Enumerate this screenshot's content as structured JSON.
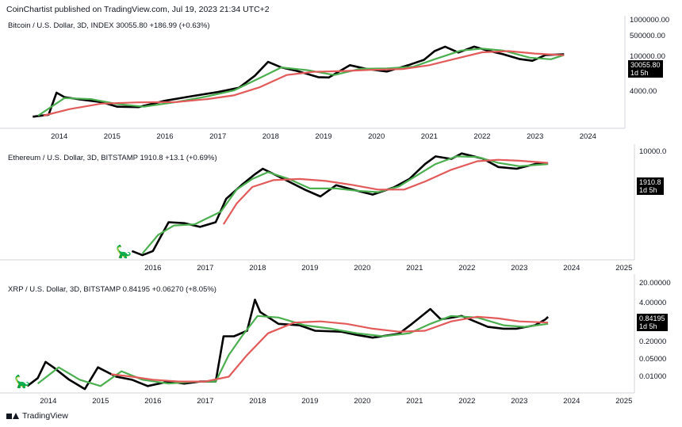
{
  "header": {
    "publisher": "CoinChartist published on TradingView.com, Jul 19, 2023 21:34 UTC+2"
  },
  "footer": {
    "brand": "TradingView"
  },
  "colors": {
    "price": "#000000",
    "fast_ma": "#4caf50",
    "slow_ma": "#e35a5a",
    "axis": "#d1d4dc"
  },
  "chart_data": [
    {
      "type": "line",
      "title": "Bitcoin / U.S. Dollar, 3D, INDEX  30055.80  +186.99 (+0.63%)",
      "price_label": "30055.80",
      "timer_label": "1d 5h",
      "yscale": "log",
      "y_tick_labels": [
        "1000000.00",
        "500000.00",
        "100000.00",
        "30055.80",
        "4000.00"
      ],
      "x_tick_labels": [
        "2014",
        "2015",
        "2016",
        "2017",
        "2018",
        "2019",
        "2020",
        "2021",
        "2022",
        "2023",
        "2024"
      ],
      "series": [
        {
          "x": [
            2013.5,
            2013.8,
            2013.95,
            2014.1,
            2014.4,
            2014.8,
            2015.1,
            2015.5,
            2016.0,
            2016.5,
            2017.0,
            2017.4,
            2017.7,
            2017.95,
            2018.2,
            2018.5,
            2018.9,
            2019.1,
            2019.5,
            2019.8,
            2020.2,
            2020.6,
            2020.9,
            2021.1,
            2021.3,
            2021.55,
            2021.85,
            2022.1,
            2022.4,
            2022.7,
            2022.95,
            2023.2,
            2023.55
          ],
          "y": [
            100,
            120,
            900,
            600,
            480,
            380,
            250,
            240,
            430,
            650,
            950,
            1400,
            4200,
            15000,
            9000,
            6500,
            3700,
            3600,
            11000,
            8000,
            6200,
            11000,
            18000,
            40000,
            60000,
            35000,
            60000,
            42000,
            30000,
            19500,
            16500,
            28000,
            30055.8
          ]
        },
        {
          "x": [
            2013.6,
            2014.1,
            2014.6,
            2015.1,
            2015.6,
            2016.2,
            2016.8,
            2017.3,
            2017.8,
            2018.2,
            2018.7,
            2019.2,
            2019.7,
            2020.2,
            2020.7,
            2021.1,
            2021.6,
            2022.0,
            2022.4,
            2022.9,
            2023.3,
            2023.55
          ],
          "y": [
            110,
            550,
            500,
            320,
            250,
            380,
            640,
            1100,
            3500,
            9000,
            7000,
            4500,
            8000,
            8200,
            9600,
            19000,
            42000,
            50000,
            42000,
            22000,
            19000,
            28000
          ]
        },
        {
          "x": [
            2013.7,
            2014.2,
            2014.8,
            2015.5,
            2016.2,
            2016.8,
            2017.3,
            2017.8,
            2018.3,
            2018.8,
            2019.4,
            2019.9,
            2020.5,
            2021.0,
            2021.5,
            2022.0,
            2022.5,
            2023.0,
            2023.55
          ],
          "y": [
            110,
            200,
            330,
            370,
            380,
            500,
            700,
            1500,
            4500,
            6000,
            6500,
            7200,
            7800,
            11000,
            20000,
            36000,
            40000,
            32000,
            27500
          ]
        }
      ]
    },
    {
      "type": "line",
      "title": "Ethereum / U.S. Dollar, 3D, BITSTAMP  1910.8  +13.1 (+0.69%)",
      "price_label": "1910.8",
      "timer_label": "1d 5h",
      "yscale": "log",
      "y_tick_labels": [
        "10000.0"
      ],
      "x_tick_labels": [
        "2016",
        "2017",
        "2018",
        "2019",
        "2020",
        "2021",
        "2022",
        "2023",
        "2024",
        "2025"
      ],
      "series": [
        {
          "x": [
            2015.6,
            2015.8,
            2016.0,
            2016.3,
            2016.6,
            2016.9,
            2017.2,
            2017.4,
            2017.7,
            2017.95,
            2018.1,
            2018.5,
            2018.9,
            2019.2,
            2019.5,
            2019.9,
            2020.2,
            2020.6,
            2020.9,
            2021.2,
            2021.4,
            2021.7,
            2021.9,
            2022.3,
            2022.6,
            2022.95,
            2023.3,
            2023.55
          ],
          "y": [
            1.0,
            0.7,
            1.0,
            12,
            11,
            8,
            12,
            90,
            300,
            750,
            1200,
            500,
            200,
            110,
            290,
            180,
            130,
            240,
            500,
            1800,
            3500,
            2800,
            4500,
            2900,
            1400,
            1200,
            1800,
            1910.8
          ]
        },
        {
          "x": [
            2015.8,
            2016.1,
            2016.4,
            2016.8,
            2017.3,
            2017.6,
            2017.9,
            2018.2,
            2018.6,
            2019.0,
            2019.5,
            2019.9,
            2020.3,
            2020.7,
            2021.0,
            2021.4,
            2021.8,
            2022.2,
            2022.6,
            2023.0,
            2023.55
          ],
          "y": [
            0.8,
            4,
            9,
            10,
            30,
            200,
            500,
            900,
            500,
            220,
            220,
            180,
            160,
            260,
            600,
            1800,
            3500,
            3300,
            2000,
            1500,
            1800
          ]
        },
        {
          "x": [
            2017.35,
            2017.6,
            2017.9,
            2018.3,
            2018.8,
            2019.3,
            2019.8,
            2020.3,
            2020.8,
            2021.2,
            2021.7,
            2022.2,
            2022.6,
            2023.0,
            2023.55
          ],
          "y": [
            10,
            60,
            250,
            450,
            500,
            420,
            300,
            200,
            200,
            400,
            1100,
            2300,
            2600,
            2400,
            2000
          ]
        }
      ]
    },
    {
      "type": "line",
      "title": "XRP / U.S. Dollar, 3D, BITSTAMP  0.84195  +0.06270 (+8.05%)",
      "price_label": "0.84195",
      "timer_label": "1d 5h",
      "yscale": "log",
      "y_tick_labels": [
        "20.00000",
        "4.00000",
        "0.84195",
        "0.20000",
        "0.05000",
        "0.01000"
      ],
      "x_tick_labels": [
        "2014",
        "2015",
        "2016",
        "2017",
        "2018",
        "2019",
        "2020",
        "2021",
        "2022",
        "2023",
        "2024",
        "2025"
      ],
      "series": [
        {
          "x": [
            2013.6,
            2013.8,
            2013.95,
            2014.1,
            2014.4,
            2014.7,
            2014.95,
            2015.3,
            2015.6,
            2015.9,
            2016.3,
            2016.6,
            2016.9,
            2017.2,
            2017.35,
            2017.55,
            2017.8,
            2017.95,
            2018.05,
            2018.4,
            2018.8,
            2019.1,
            2019.6,
            2019.9,
            2020.2,
            2020.7,
            2020.95,
            2021.3,
            2021.5,
            2021.9,
            2022.4,
            2022.7,
            2022.95,
            2023.3,
            2023.5,
            2023.55
          ],
          "y": [
            0.005,
            0.009,
            0.03,
            0.02,
            0.008,
            0.004,
            0.02,
            0.01,
            0.008,
            0.005,
            0.007,
            0.006,
            0.007,
            0.007,
            0.2,
            0.2,
            0.3,
            3.0,
            1.2,
            0.5,
            0.45,
            0.3,
            0.28,
            0.22,
            0.18,
            0.24,
            0.5,
            1.5,
            0.7,
            0.9,
            0.4,
            0.35,
            0.35,
            0.45,
            0.7,
            0.84195
          ]
        },
        {
          "x": [
            2013.8,
            2014.2,
            2014.6,
            2015.0,
            2015.4,
            2015.8,
            2016.3,
            2016.8,
            2017.2,
            2017.45,
            2017.7,
            2018.0,
            2018.4,
            2018.9,
            2019.4,
            2019.9,
            2020.4,
            2020.9,
            2021.3,
            2021.7,
            2022.2,
            2022.7,
            2023.1,
            2023.55
          ],
          "y": [
            0.006,
            0.02,
            0.008,
            0.005,
            0.015,
            0.008,
            0.006,
            0.007,
            0.007,
            0.05,
            0.2,
            0.9,
            0.8,
            0.45,
            0.35,
            0.25,
            0.2,
            0.25,
            0.5,
            0.9,
            0.8,
            0.45,
            0.4,
            0.5
          ]
        },
        {
          "x": [
            2015.2,
            2015.6,
            2016.0,
            2016.5,
            2017.0,
            2017.45,
            2017.8,
            2018.2,
            2018.7,
            2019.2,
            2019.7,
            2020.2,
            2020.7,
            2021.2,
            2021.7,
            2022.2,
            2022.6,
            2023.0,
            2023.55
          ],
          "y": [
            0.012,
            0.01,
            0.008,
            0.007,
            0.007,
            0.01,
            0.05,
            0.25,
            0.55,
            0.6,
            0.5,
            0.35,
            0.28,
            0.3,
            0.6,
            0.85,
            0.75,
            0.6,
            0.55
          ]
        }
      ]
    }
  ]
}
